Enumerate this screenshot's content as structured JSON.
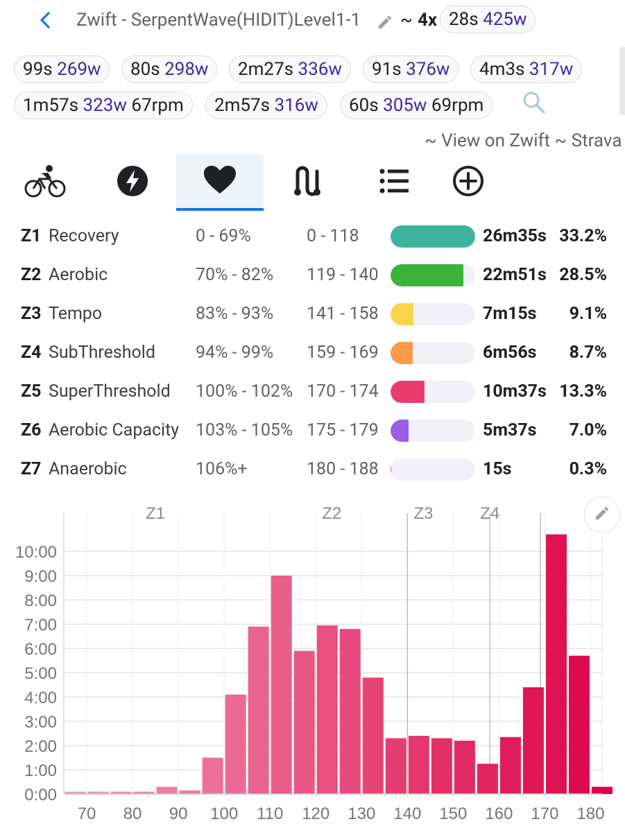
{
  "header": {
    "title": "Zwift - SerpentWave(HIDIT)Level1-1",
    "tilde": "~",
    "multiplier": "4x",
    "best_chip": {
      "time": "28s",
      "watts": "425w"
    }
  },
  "interval_chips": [
    {
      "time": "99s",
      "watts": "269w",
      "rpm": ""
    },
    {
      "time": "80s",
      "watts": "298w",
      "rpm": ""
    },
    {
      "time": "2m27s",
      "watts": "336w",
      "rpm": ""
    },
    {
      "time": "91s",
      "watts": "376w",
      "rpm": ""
    },
    {
      "time": "4m3s",
      "watts": "317w",
      "rpm": ""
    },
    {
      "time": "1m57s",
      "watts": "323w",
      "rpm": "67rpm"
    },
    {
      "time": "2m57s",
      "watts": "316w",
      "rpm": ""
    },
    {
      "time": "60s",
      "watts": "305w",
      "rpm": "69rpm"
    }
  ],
  "links": "~ View on Zwift ~ Strava",
  "tabs": [
    {
      "icon": "cycling-icon",
      "active": false
    },
    {
      "icon": "power-bolt-icon",
      "active": false
    },
    {
      "icon": "heart-icon",
      "active": true
    },
    {
      "icon": "route-icon",
      "active": false
    },
    {
      "icon": "list-icon",
      "active": false
    },
    {
      "icon": "add-circle-icon",
      "active": false
    }
  ],
  "zones": [
    {
      "code": "Z1",
      "name": "Recovery",
      "pct": "0 - 69%",
      "hr": "0 - 118",
      "time": "26m35s",
      "percent": "33.2%",
      "fill": 1.0,
      "color": "#3db39e"
    },
    {
      "code": "Z2",
      "name": "Aerobic",
      "pct": "70% - 82%",
      "hr": "119 - 140",
      "time": "22m51s",
      "percent": "28.5%",
      "fill": 0.86,
      "color": "#3bb33b"
    },
    {
      "code": "Z3",
      "name": "Tempo",
      "pct": "83% - 93%",
      "hr": "141 - 158",
      "time": "7m15s",
      "percent": "9.1%",
      "fill": 0.27,
      "color": "#fbd44a"
    },
    {
      "code": "Z4",
      "name": "SubThreshold",
      "pct": "94% - 99%",
      "hr": "159 - 169",
      "time": "6m56s",
      "percent": "8.7%",
      "fill": 0.26,
      "color": "#fb9a4a"
    },
    {
      "code": "Z5",
      "name": "SuperThreshold",
      "pct": "100% - 102%",
      "hr": "170 - 174",
      "time": "10m37s",
      "percent": "13.3%",
      "fill": 0.4,
      "color": "#e73c70"
    },
    {
      "code": "Z6",
      "name": "Aerobic Capacity",
      "pct": "103% - 105%",
      "hr": "175 - 179",
      "time": "5m37s",
      "percent": "7.0%",
      "fill": 0.21,
      "color": "#9a5de3"
    },
    {
      "code": "Z7",
      "name": "Anaerobic",
      "pct": "106%+",
      "hr": "180 - 188",
      "time": "15s",
      "percent": "0.3%",
      "fill": 0.01,
      "color": "#e73c70"
    }
  ],
  "chart_data": {
    "type": "bar",
    "x_ticks": [
      70,
      80,
      90,
      100,
      110,
      120,
      130,
      140,
      150,
      160,
      170,
      180
    ],
    "y_ticks": [
      "0:00",
      "1:00",
      "2:00",
      "3:00",
      "4:00",
      "5:00",
      "6:00",
      "7:00",
      "8:00",
      "9:00",
      "10:00"
    ],
    "ylim": [
      0,
      11
    ],
    "xlim": [
      65,
      182.5
    ],
    "zone_labels": [
      {
        "label": "Z1",
        "x": 85
      },
      {
        "label": "Z2",
        "x": 123.5
      },
      {
        "label": "Z3",
        "x": 143.5
      },
      {
        "label": "Z4",
        "x": 158
      }
    ],
    "zone_lines": [
      140,
      158,
      169
    ],
    "bin_start": 65,
    "bin_width": 5,
    "values_minutes": [
      0.1,
      0.1,
      0.1,
      0.1,
      0.3,
      0.15,
      1.5,
      4.1,
      6.9,
      9.0,
      5.9,
      6.95,
      6.8,
      4.8,
      2.3,
      2.4,
      2.3,
      2.2,
      1.25,
      2.35,
      4.4,
      10.7,
      5.7,
      0.3
    ],
    "color_start": "#f296b4",
    "color_end": "#dc0448"
  }
}
